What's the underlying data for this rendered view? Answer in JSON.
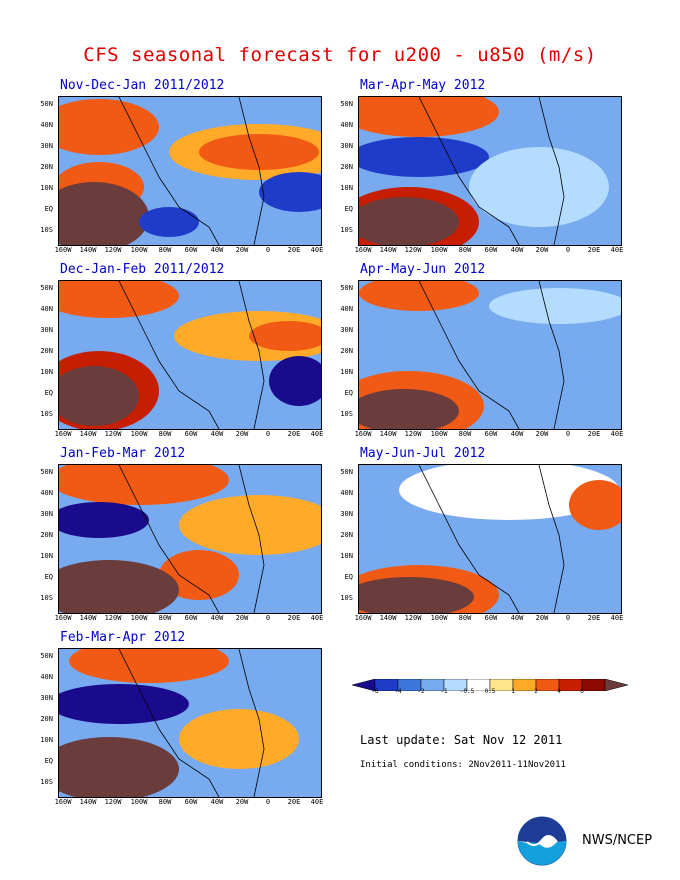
{
  "title": "CFS seasonal forecast for u200 - u850 (m/s)",
  "panels": [
    {
      "id": "ndj",
      "label": "Nov-Dec-Jan 2011/2012"
    },
    {
      "id": "mam",
      "label": "Mar-Apr-May 2012"
    },
    {
      "id": "djf",
      "label": "Dec-Jan-Feb 2011/2012"
    },
    {
      "id": "amj",
      "label": "Apr-May-Jun 2012"
    },
    {
      "id": "jfm",
      "label": "Jan-Feb-Mar 2012"
    },
    {
      "id": "mjj",
      "label": "May-Jun-Jul 2012"
    },
    {
      "id": "fma",
      "label": "Feb-Mar-Apr 2012"
    }
  ],
  "lat_labels": [
    "50N",
    "40N",
    "30N",
    "20N",
    "10N",
    "EQ",
    "10S"
  ],
  "lon_labels": [
    "160W",
    "140W",
    "120W",
    "100W",
    "80W",
    "60W",
    "40W",
    "20W",
    "0",
    "20E",
    "40E"
  ],
  "colorbar": {
    "labels": [
      "-6",
      "-4",
      "-2",
      "-1",
      "-0.5",
      "0.5",
      "1",
      "2",
      "4",
      "6"
    ],
    "colors": [
      "#1a0a8c",
      "#1e3cc8",
      "#3c78dc",
      "#78aaf0",
      "#b4dcff",
      "#ffffff",
      "#ffe68c",
      "#ffaa28",
      "#f05a14",
      "#c81e00",
      "#8c0a00",
      "#6b3c3c"
    ]
  },
  "last_update": "Last update: Sat Nov 12 2011",
  "initial_conditions": "Initial conditions: 2Nov2011-11Nov2011",
  "credit": "NWS/NCEP"
}
